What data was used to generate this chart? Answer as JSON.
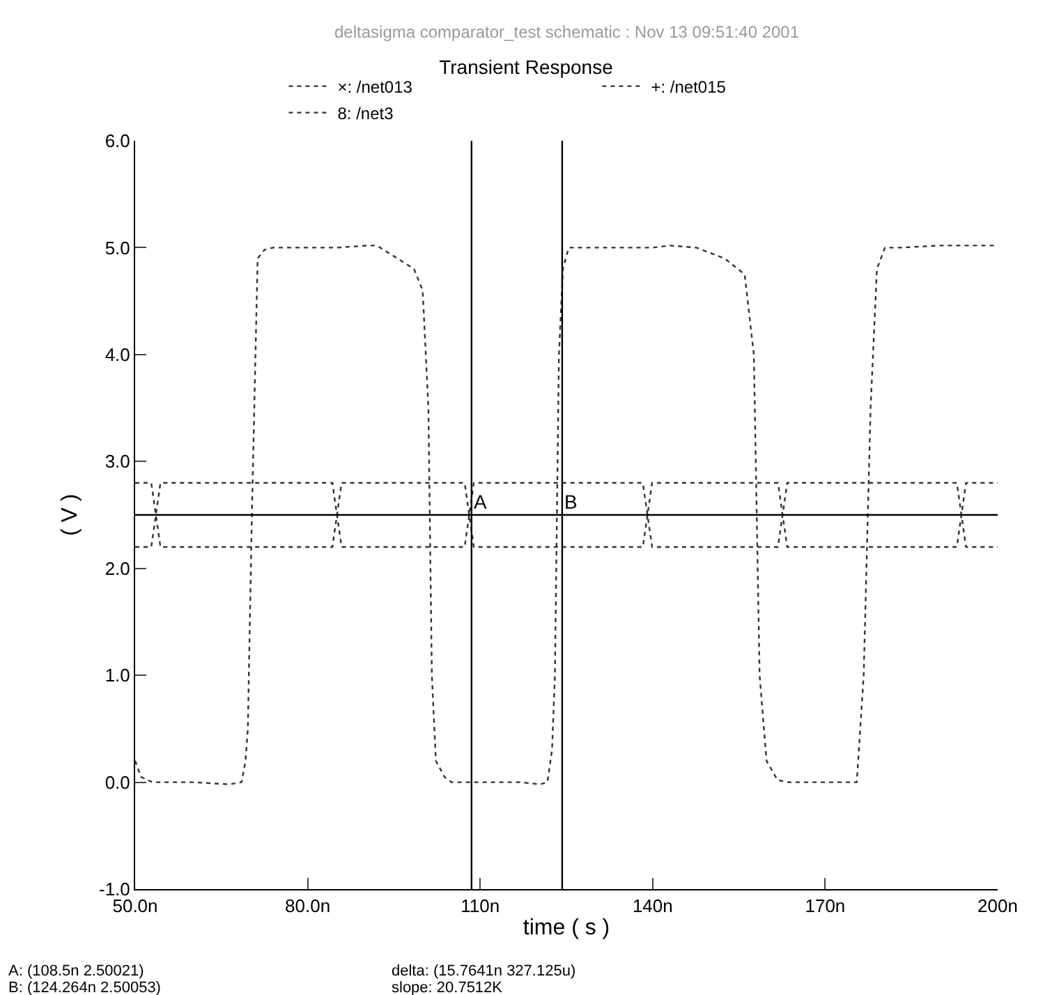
{
  "chart_data": {
    "type": "line",
    "title": "Transient Response",
    "subtitle": "deltasigma comparator_test schematic : Nov 13 09:51:40 2001",
    "xlabel": "time ( s )",
    "ylabel": "( V )",
    "xlim": [
      50,
      200
    ],
    "xticks": [
      {
        "value": 50,
        "label": "50.0n"
      },
      {
        "value": 80,
        "label": "80.0n"
      },
      {
        "value": 110,
        "label": "110n"
      },
      {
        "value": 140,
        "label": "140n"
      },
      {
        "value": 170,
        "label": "170n"
      },
      {
        "value": 200,
        "label": "200n"
      }
    ],
    "ylim": [
      -1,
      6
    ],
    "yticks": [
      {
        "value": -1,
        "label": "-1.0"
      },
      {
        "value": 0,
        "label": "0.0"
      },
      {
        "value": 1,
        "label": "1.0"
      },
      {
        "value": 2,
        "label": "2.0"
      },
      {
        "value": 3,
        "label": "3.0"
      },
      {
        "value": 4,
        "label": "4.0"
      },
      {
        "value": 5,
        "label": "5.0"
      },
      {
        "value": 6,
        "label": "6.0"
      }
    ],
    "grid": false,
    "legend": "top",
    "line_style": "dotted",
    "series": [
      {
        "name": "×: /net013",
        "color": "#333333",
        "x": [
          50,
          51,
          53,
          56,
          60,
          66.3,
          68.5,
          69.2,
          69.6,
          70.3,
          71.3,
          72.5,
          74,
          80,
          85,
          90.5,
          92,
          95.6,
          98.5,
          100,
          101,
          101.6,
          102.3,
          103.8,
          105,
          110,
          116.9,
          120.5,
          121.7,
          122.5,
          123,
          123.7,
          124.4,
          125.4,
          127,
          135,
          140.1,
          143,
          147.6,
          152.5,
          156,
          157.6,
          158.6,
          159.8,
          161.7,
          163.6,
          170,
          175.5,
          176.7,
          177.9,
          179,
          180.4,
          183,
          190,
          200
        ],
        "values": [
          0.2,
          0.05,
          0,
          0,
          0,
          -0.02,
          0,
          0.2,
          0.5,
          2.5,
          4.9,
          4.98,
          5,
          5,
          5,
          5.02,
          5.02,
          4.9,
          4.8,
          4.6,
          3.5,
          1,
          0.2,
          0.05,
          0,
          0,
          0,
          -0.02,
          0,
          0.3,
          1,
          4,
          4.8,
          5,
          5,
          5,
          5,
          5.02,
          5,
          4.9,
          4.75,
          4,
          1,
          0.2,
          0.02,
          0,
          0,
          0,
          1,
          3.5,
          4.8,
          5,
          5,
          5.02,
          5.02
        ]
      },
      {
        "name": "+: /net015",
        "color": "#333333",
        "x": [
          50,
          52.8,
          53.6,
          54.4,
          84.3,
          85.1,
          85.9,
          107.3,
          108.1,
          108.9,
          138.3,
          139.1,
          139.9,
          161.8,
          162.6,
          163.4,
          192.9,
          193.7,
          194.5,
          200
        ],
        "values": [
          2.8,
          2.8,
          2.5,
          2.2,
          2.2,
          2.5,
          2.8,
          2.8,
          2.5,
          2.2,
          2.2,
          2.5,
          2.8,
          2.8,
          2.5,
          2.2,
          2.2,
          2.5,
          2.8,
          2.8
        ]
      },
      {
        "name": "8: /net3",
        "color": "#333333",
        "x": [
          50,
          52.8,
          53.6,
          54.4,
          84.3,
          85.1,
          85.9,
          107.3,
          108.1,
          108.9,
          138.3,
          139.1,
          139.9,
          161.8,
          162.6,
          163.4,
          192.9,
          193.7,
          194.5,
          200
        ],
        "values": [
          2.2,
          2.2,
          2.5,
          2.8,
          2.8,
          2.5,
          2.2,
          2.2,
          2.5,
          2.8,
          2.8,
          2.5,
          2.2,
          2.2,
          2.5,
          2.8,
          2.8,
          2.5,
          2.2,
          2.2
        ]
      }
    ],
    "ref_lines": [
      {
        "axis": "y",
        "value": 2.5,
        "color": "#000000"
      },
      {
        "axis": "x",
        "value": 108.5,
        "label": "A",
        "color": "#000000"
      },
      {
        "axis": "x",
        "value": 124.264,
        "label": "B",
        "color": "#000000"
      }
    ],
    "annotations": [
      "A: (108.5n 2.50021)",
      "B: (124.264n 2.50053)",
      "delta: (15.7641n 327.125u)",
      "slope: 20.7512K"
    ]
  }
}
